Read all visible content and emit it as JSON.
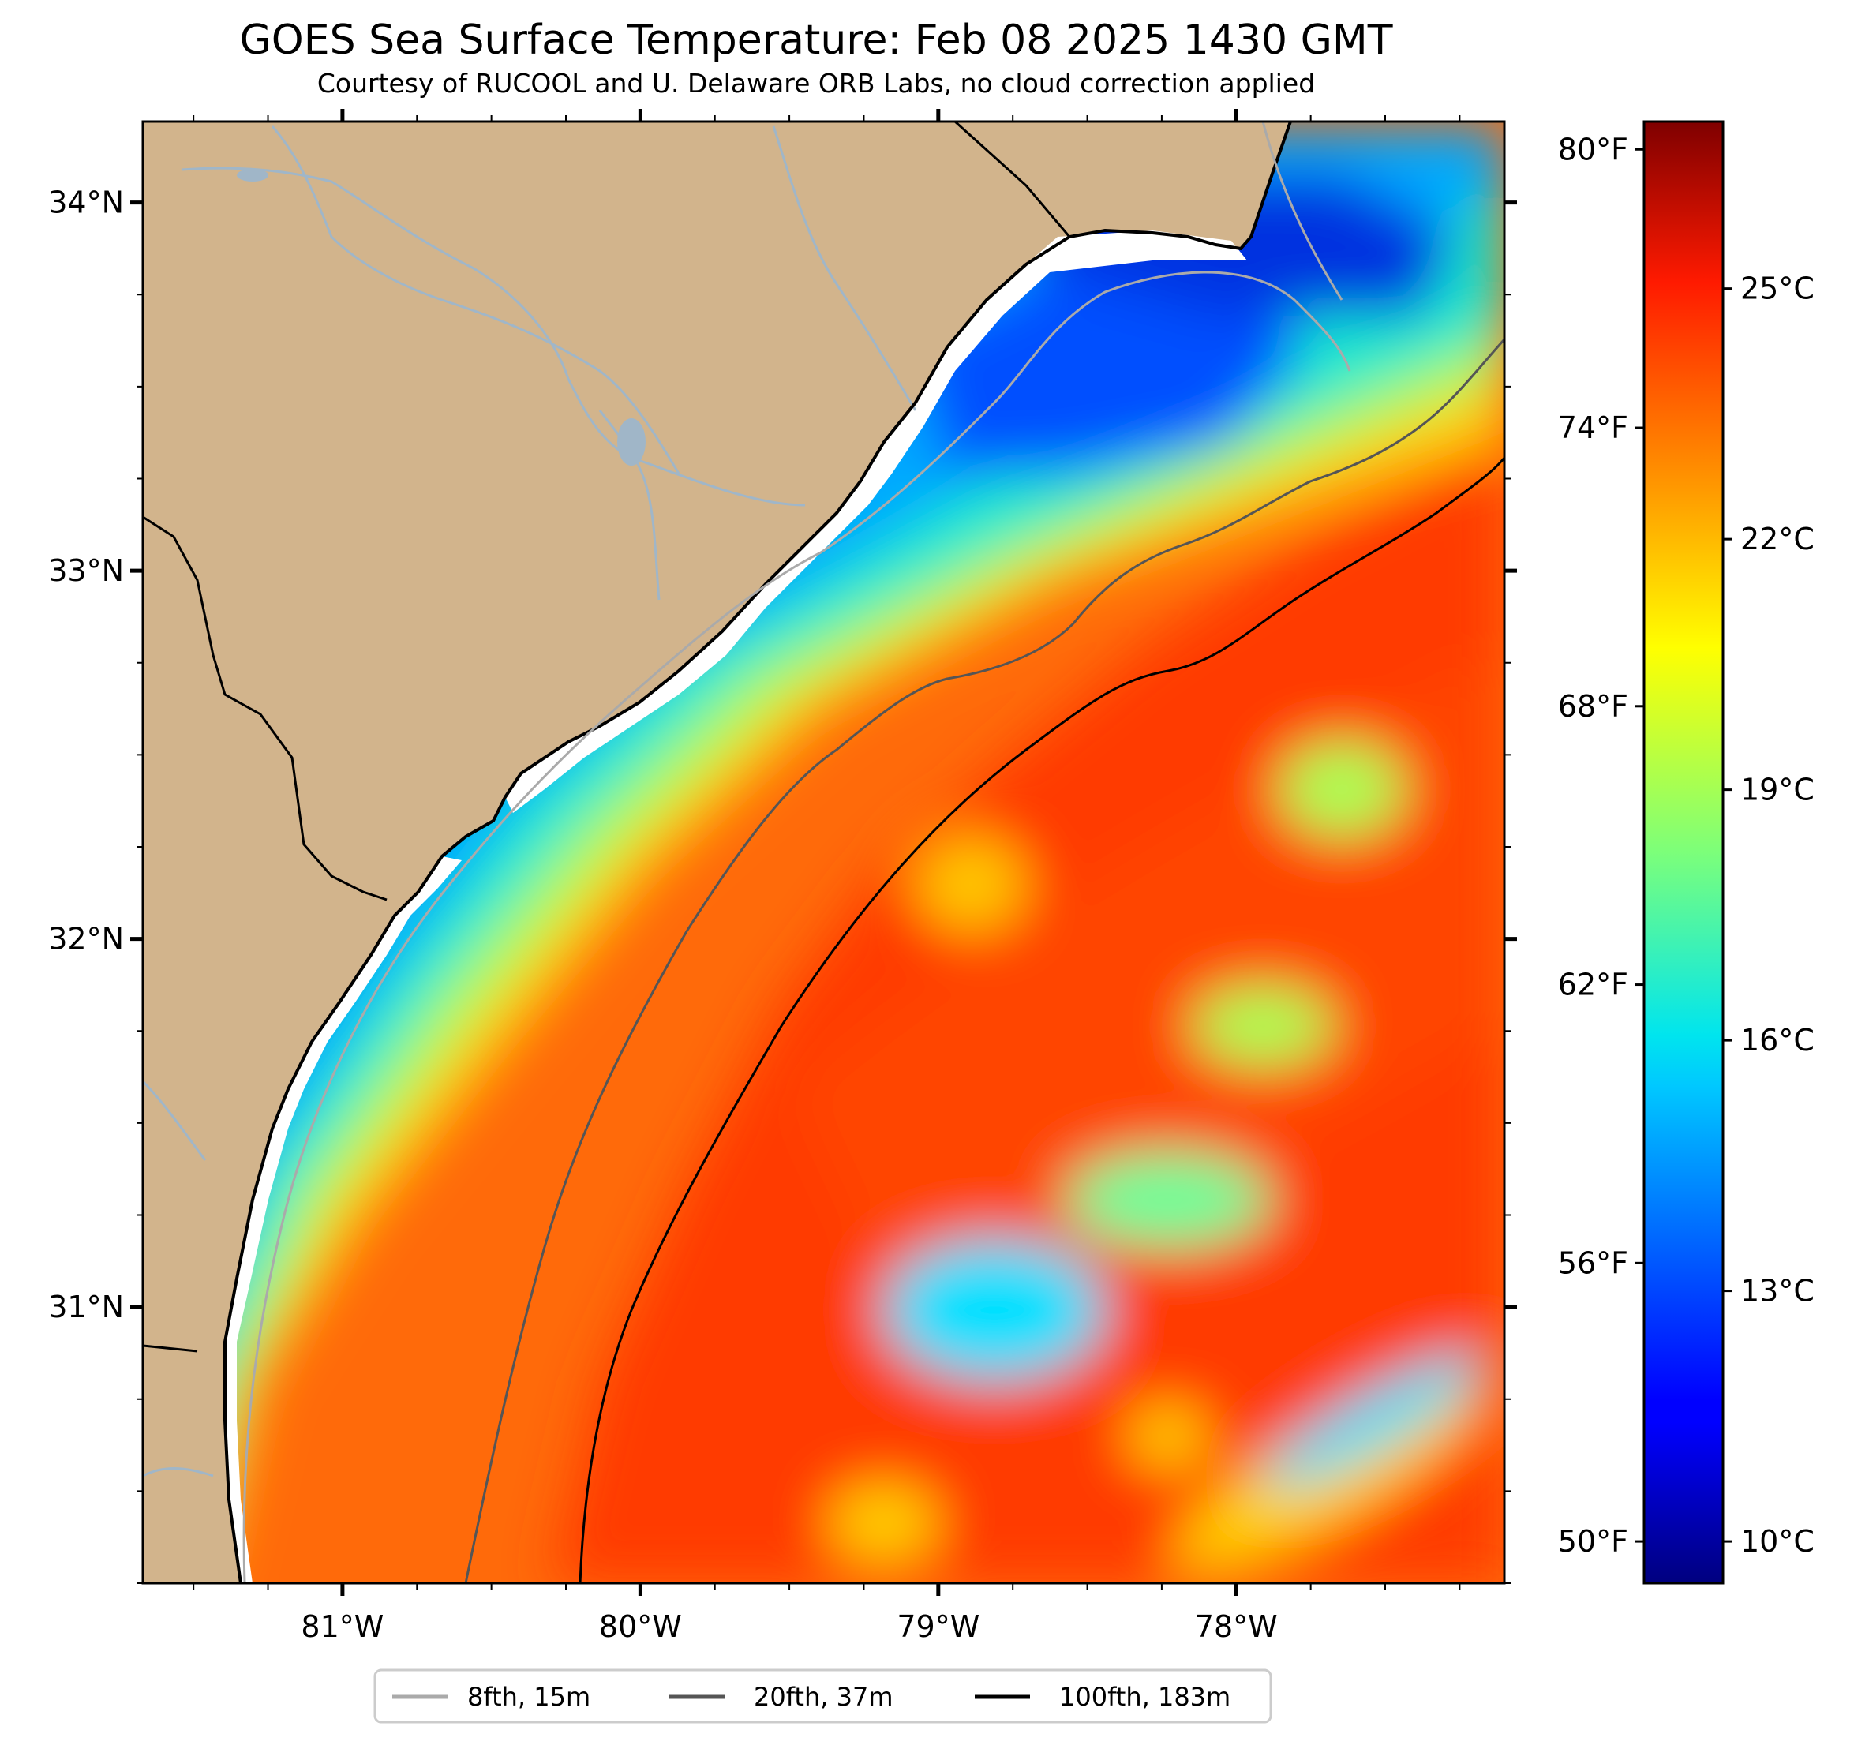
{
  "title": "GOES Sea Surface Temperature: Feb 08 2025 1430 GMT",
  "subtitle": "Courtesy of RUCOOL and U. Delaware ORB Labs, no cloud correction applied",
  "map": {
    "lon_range": [
      -81.67,
      -77.1
    ],
    "lat_range": [
      30.25,
      34.22
    ],
    "lon_ticks": [
      {
        "value": -81,
        "label": "81°W"
      },
      {
        "value": -80,
        "label": "80°W"
      },
      {
        "value": -79,
        "label": "79°W"
      },
      {
        "value": -78,
        "label": "78°W"
      }
    ],
    "lat_ticks": [
      {
        "value": 34,
        "label": "34°N"
      },
      {
        "value": 33,
        "label": "33°N"
      },
      {
        "value": 32,
        "label": "32°N"
      },
      {
        "value": 31,
        "label": "31°N"
      }
    ],
    "colors": {
      "land": "#d2b48c",
      "coast": "#000000",
      "rivers": "#a0b6c8"
    }
  },
  "colorbar": {
    "colormap": "jet",
    "celsius_range": [
      9.5,
      27.0
    ],
    "fahrenheit_labels": [
      {
        "value": 80,
        "label": "80°F"
      },
      {
        "value": 74,
        "label": "74°F"
      },
      {
        "value": 68,
        "label": "68°F"
      },
      {
        "value": 62,
        "label": "62°F"
      },
      {
        "value": 56,
        "label": "56°F"
      },
      {
        "value": 50,
        "label": "50°F"
      }
    ],
    "celsius_labels": [
      {
        "value": 25,
        "label": "25°C"
      },
      {
        "value": 22,
        "label": "22°C"
      },
      {
        "value": 19,
        "label": "19°C"
      },
      {
        "value": 16,
        "label": "16°C"
      },
      {
        "value": 13,
        "label": "13°C"
      },
      {
        "value": 10,
        "label": "10°C"
      }
    ]
  },
  "legend": {
    "items": [
      {
        "label": "8fth, 15m",
        "color": "#aaaaaa"
      },
      {
        "label": "20fth, 37m",
        "color": "#555555"
      },
      {
        "label": "100fth, 183m",
        "color": "#000000"
      }
    ]
  }
}
